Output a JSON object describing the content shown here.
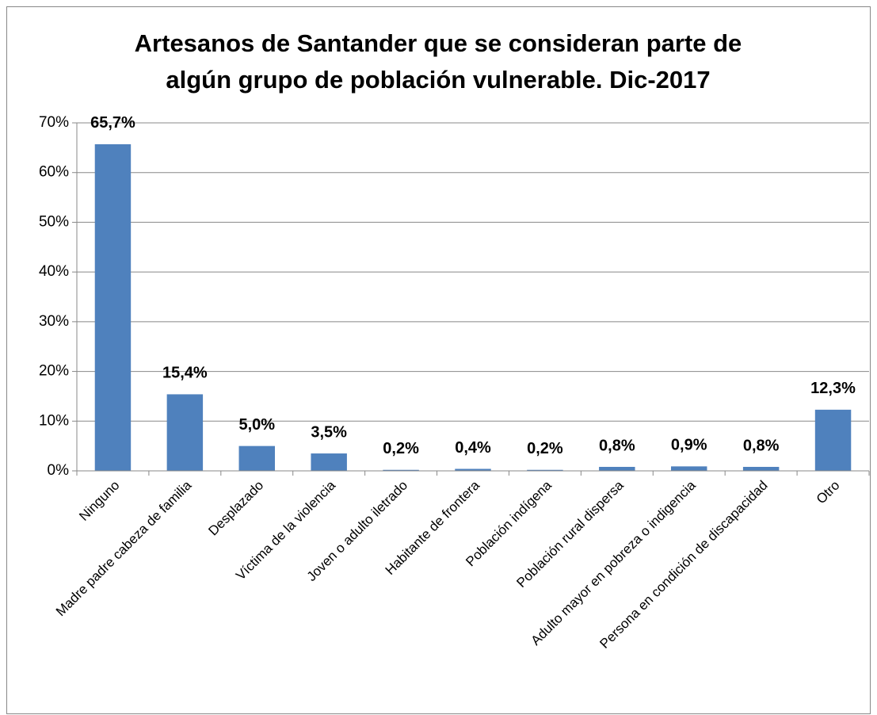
{
  "chart_data": {
    "type": "bar",
    "title": [
      "Artesanos de Santander que se consideran parte de",
      "algún grupo de población vulnerable. Dic-2017"
    ],
    "categories": [
      "Ninguno",
      "Madre padre cabeza de familia",
      "Desplazado",
      "Víctima de la violencia",
      "Joven o adulto iletrado",
      "Habitante de frontera",
      "Población indígena",
      "Población rural dispersa",
      "Adulto mayor en pobreza o indigencia",
      "Persona en condición de discapacidad",
      "Otro"
    ],
    "values": [
      65.7,
      15.4,
      5.0,
      3.5,
      0.2,
      0.4,
      0.2,
      0.8,
      0.9,
      0.8,
      12.3
    ],
    "value_labels": [
      "65,7%",
      "15,4%",
      "5,0%",
      "3,5%",
      "0,2%",
      "0,4%",
      "0,2%",
      "0,8%",
      "0,9%",
      "0,8%",
      "12,3%"
    ],
    "color": "#4f81bd",
    "ylim": [
      0,
      70
    ],
    "yticks": [
      {
        "value": 0,
        "label": "0%"
      },
      {
        "value": 10,
        "label": "10%"
      },
      {
        "value": 20,
        "label": "20%"
      },
      {
        "value": 30,
        "label": "30%"
      },
      {
        "value": 40,
        "label": "40%"
      },
      {
        "value": 50,
        "label": "50%"
      },
      {
        "value": 60,
        "label": "60%"
      },
      {
        "value": 70,
        "label": "70%"
      }
    ],
    "grid": true
  }
}
